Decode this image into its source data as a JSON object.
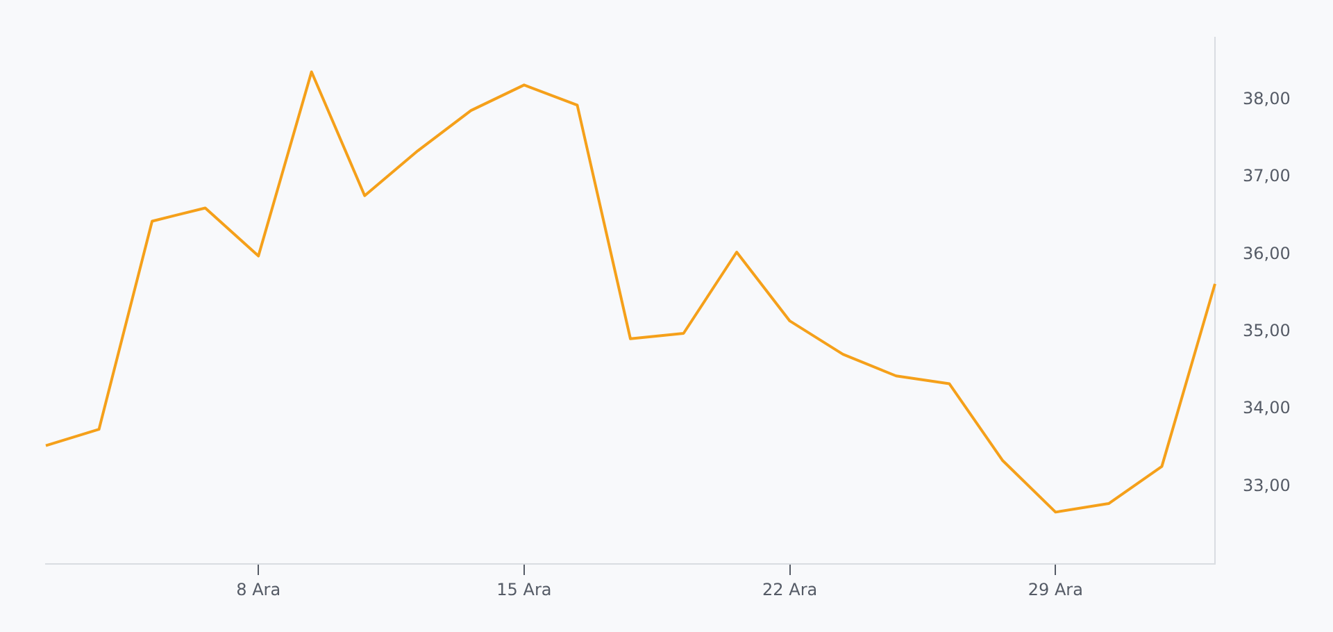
{
  "chart_data": {
    "type": "line",
    "categories": [
      null,
      null,
      null,
      null,
      "8 Ara",
      null,
      null,
      null,
      null,
      "15 Ara",
      null,
      null,
      null,
      null,
      "22 Ara",
      null,
      null,
      null,
      null,
      "29 Ara",
      null,
      null,
      null
    ],
    "series": [
      {
        "color": "#f5a01a",
        "values": [
          33.53,
          33.74,
          36.43,
          36.6,
          35.98,
          38.36,
          36.76,
          37.34,
          37.86,
          38.19,
          37.93,
          34.91,
          34.98,
          36.03,
          35.14,
          34.71,
          34.43,
          34.33,
          33.34,
          32.67,
          32.78,
          33.26,
          35.62
        ]
      }
    ],
    "yticks": [
      {
        "value": 33,
        "label": "33,00"
      },
      {
        "value": 34,
        "label": "34,00"
      },
      {
        "value": 35,
        "label": "35,00"
      },
      {
        "value": 36,
        "label": "36,00"
      },
      {
        "value": 37,
        "label": "37,00"
      },
      {
        "value": 38,
        "label": "38,00"
      }
    ],
    "ylim": [
      32,
      38.8
    ],
    "grid": false,
    "legend": false,
    "marker": "none",
    "line_style": "solid"
  }
}
